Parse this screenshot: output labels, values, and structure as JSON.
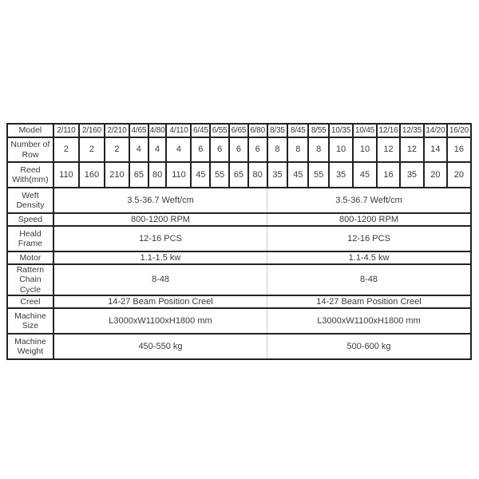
{
  "page": {
    "background_color": "#ffffff",
    "border_color": "#222222",
    "text_color": "#3a3a3a"
  },
  "table": {
    "models": [
      "2/110",
      "2/160",
      "2/210",
      "4/65",
      "4/80",
      "4/110",
      "6/45",
      "6/55",
      "6/65",
      "6/80",
      "8/35",
      "8/45",
      "8/55",
      "10/35",
      "10/45",
      "12/16",
      "12/35",
      "14/20",
      "16/20"
    ],
    "rows": [
      {
        "label": "Model",
        "type": "models"
      },
      {
        "label": "Number of Row",
        "type": "values",
        "values": [
          "2",
          "2",
          "2",
          "4",
          "4",
          "4",
          "6",
          "6",
          "6",
          "6",
          "8",
          "8",
          "8",
          "10",
          "10",
          "12",
          "12",
          "14",
          "16"
        ]
      },
      {
        "label": "Reed With(mm)",
        "type": "values",
        "values": [
          "110",
          "160",
          "210",
          "65",
          "80",
          "110",
          "45",
          "55",
          "65",
          "80",
          "35",
          "45",
          "55",
          "35",
          "45",
          "16",
          "35",
          "20",
          "20"
        ]
      },
      {
        "label": "Weft Density",
        "type": "merged",
        "left": "3.5-36.7 Weft/cm",
        "right": "3.5-36.7 Weft/cm"
      },
      {
        "label": "Speed",
        "type": "merged",
        "left": "800-1200 RPM",
        "right": "800-1200 RPM"
      },
      {
        "label": "Heald Frame",
        "type": "merged",
        "left": "12-16 PCS",
        "right": "12-16 PCS"
      },
      {
        "label": "Motor",
        "type": "merged",
        "left": "1.1-1.5 kw",
        "right": "1.1-4.5 kw"
      },
      {
        "label": "Rattern Chain Cycle",
        "type": "merged",
        "left": "8-48",
        "right": "8-48"
      },
      {
        "label": "Creel",
        "type": "merged",
        "left": "14-27 Beam Position Creel",
        "right": "14-27 Beam Position Creel"
      },
      {
        "label": "Machine Size",
        "type": "merged",
        "left": "L3000xW1100xH1800 mm",
        "right": "L3000xW1100xH1800 mm"
      },
      {
        "label": "Machine Weight",
        "type": "merged",
        "left": "450-550 kg",
        "right": "500-600 kg"
      }
    ]
  }
}
